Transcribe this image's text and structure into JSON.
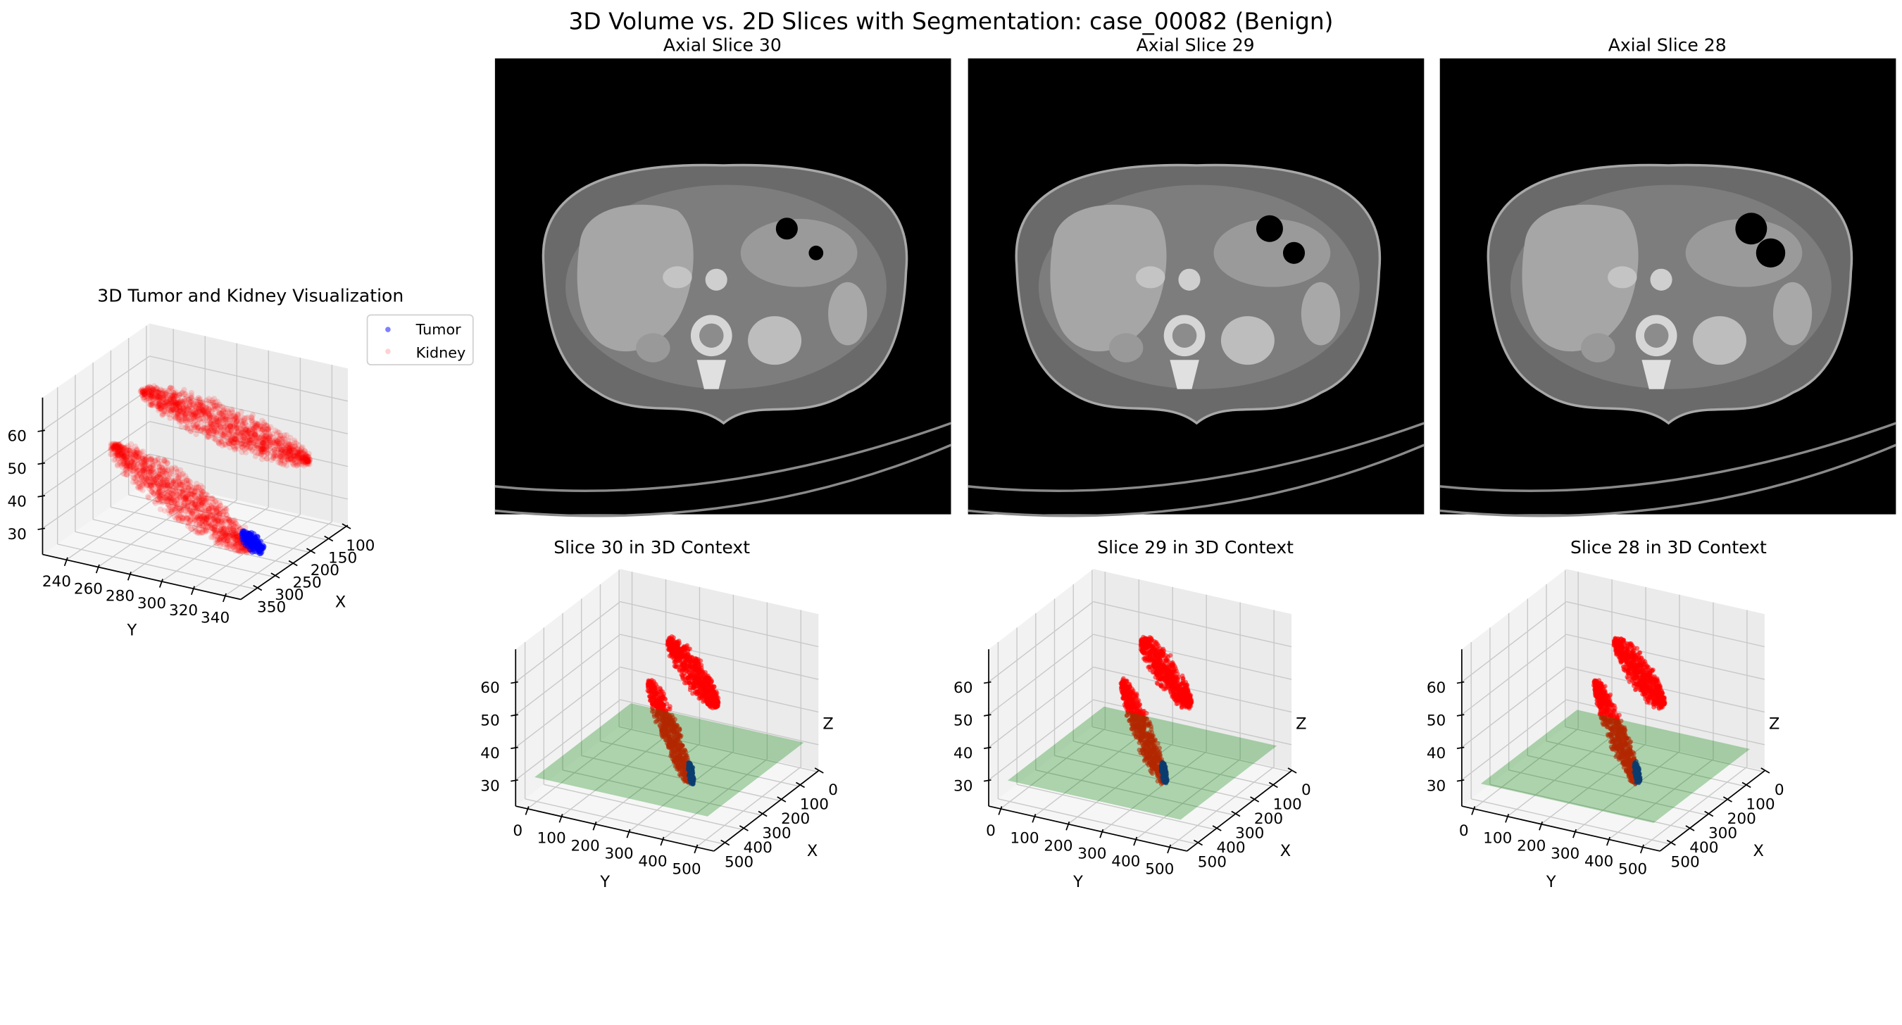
{
  "figure": {
    "suptitle": "3D Volume vs. 2D Slices with Segmentation: case_00082 (Benign)"
  },
  "colors": {
    "tumor": "#0000ff",
    "kidney": "#ff0000",
    "slice_plane": "#008000",
    "ct_background": "#000000"
  },
  "ct_slices": [
    {
      "title": "Axial Slice 30",
      "slice": 30
    },
    {
      "title": "Axial Slice 29",
      "slice": 29
    },
    {
      "title": "Axial Slice 28",
      "slice": 28
    }
  ],
  "chart_data": [
    {
      "type": "scatter3d",
      "title": "3D Tumor and Kidney Visualization",
      "xlabel": "X",
      "ylabel": "Y",
      "zlabel": "",
      "xlim": [
        91,
        392
      ],
      "ylim": [
        225,
        350
      ],
      "zlim": [
        22,
        70
      ],
      "xticks": [
        100,
        150,
        200,
        250,
        300,
        350
      ],
      "yticks": [
        240,
        260,
        280,
        300,
        320,
        340
      ],
      "zticks": [
        30,
        40,
        50,
        60
      ],
      "grid": true,
      "legend": {
        "position": "upper right",
        "entries": [
          "Tumor",
          "Kidney"
        ]
      },
      "series": [
        {
          "name": "Tumor",
          "color": "#0000ff",
          "alpha": 0.5,
          "regions": [
            {
              "from": [
                268,
                334,
                26
              ],
              "to": [
                282,
                328,
                31
              ],
              "radius": [
                8,
                6,
                3
              ]
            }
          ]
        },
        {
          "name": "Kidney",
          "color": "#ff0000",
          "alpha": 0.15,
          "regions": [
            {
              "from": [
                273,
                329,
                26
              ],
              "to": [
                390,
                270,
                60
              ],
              "radius": [
                30,
                16,
                6
              ]
            },
            {
              "from": [
                272,
                262,
                67
              ],
              "to": [
                141,
                336,
                44
              ],
              "radius": [
                30,
                16,
                6
              ]
            }
          ]
        }
      ]
    },
    {
      "type": "scatter3d",
      "title": "Slice 30 in 3D Context",
      "xlabel": "X",
      "ylabel": "Y",
      "zlabel": "Z",
      "xlim": [
        -6,
        550
      ],
      "ylim": [
        -35,
        552
      ],
      "zlim": [
        22,
        70
      ],
      "xticks": [
        0,
        100,
        200,
        300,
        400,
        500
      ],
      "yticks": [
        0,
        100,
        200,
        300,
        400,
        500
      ],
      "zticks": [
        30,
        40,
        50,
        60
      ],
      "grid": true,
      "slice_plane": {
        "z": 30,
        "x_range": [
          0,
          512
        ],
        "y_range": [
          0,
          512
        ],
        "alpha": 0.3
      }
    },
    {
      "type": "scatter3d",
      "title": "Slice 29 in 3D Context",
      "xlabel": "X",
      "ylabel": "Y",
      "zlabel": "Z",
      "xlim": [
        -6,
        550
      ],
      "ylim": [
        -35,
        552
      ],
      "zlim": [
        22,
        70
      ],
      "xticks": [
        0,
        100,
        200,
        300,
        400,
        500
      ],
      "yticks": [
        0,
        100,
        200,
        300,
        400,
        500
      ],
      "zticks": [
        30,
        40,
        50,
        60
      ],
      "grid": true,
      "slice_plane": {
        "z": 29,
        "x_range": [
          0,
          512
        ],
        "y_range": [
          0,
          512
        ],
        "alpha": 0.3
      }
    },
    {
      "type": "scatter3d",
      "title": "Slice 28 in 3D Context",
      "xlabel": "X",
      "ylabel": "Y",
      "zlabel": "Z",
      "xlim": [
        -6,
        550
      ],
      "ylim": [
        -35,
        552
      ],
      "zlim": [
        22,
        70
      ],
      "xticks": [
        0,
        100,
        200,
        300,
        400,
        500
      ],
      "yticks": [
        0,
        100,
        200,
        300,
        400,
        500
      ],
      "zticks": [
        30,
        40,
        50,
        60
      ],
      "grid": true,
      "slice_plane": {
        "z": 28,
        "x_range": [
          0,
          512
        ],
        "y_range": [
          0,
          512
        ],
        "alpha": 0.3
      }
    }
  ]
}
